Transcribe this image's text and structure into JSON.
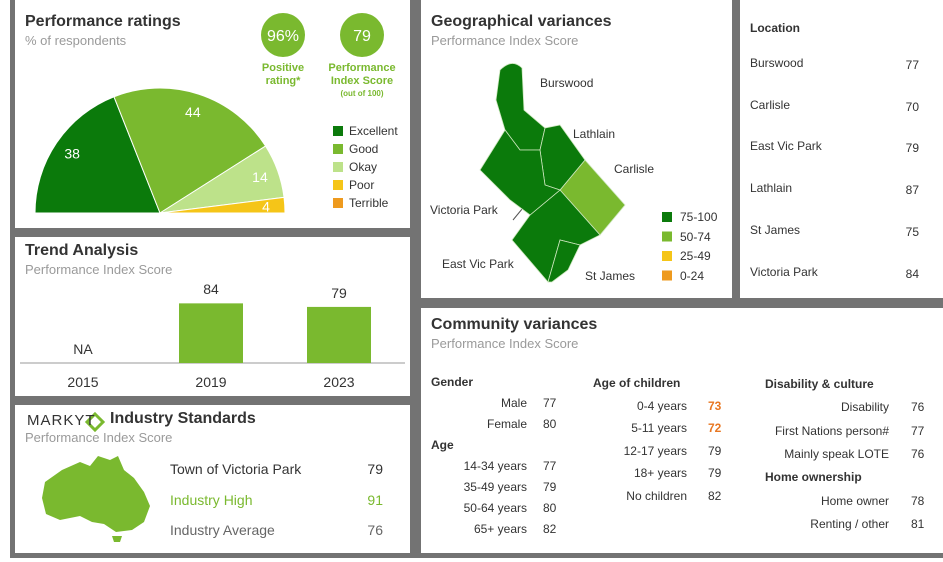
{
  "performance_ratings": {
    "title": "Performance ratings",
    "subtitle": "% of respondents",
    "badges": [
      {
        "value": "96%",
        "label": "Positive rating*"
      },
      {
        "value": "79",
        "label": "Performance Index Score",
        "note": "(out of 100)"
      }
    ],
    "chart_data": {
      "type": "pie",
      "half": true,
      "categories": [
        "Excellent",
        "Good",
        "Okay",
        "Poor",
        "Terrible"
      ],
      "values": [
        38,
        44,
        14,
        4,
        0
      ],
      "value_labels": [
        "38",
        "44",
        "14",
        "4",
        null
      ],
      "colors": [
        "#0b7a0b",
        "#7ab92f",
        "#bde28a",
        "#f5c518",
        "#ee9a1e"
      ]
    }
  },
  "trend_analysis": {
    "title": "Trend Analysis",
    "subtitle": "Performance Index Score",
    "chart_data": {
      "type": "bar",
      "categories": [
        "2015",
        "2019",
        "2023"
      ],
      "values": [
        null,
        84,
        79
      ],
      "value_labels": [
        "NA",
        "84",
        "79"
      ],
      "color": "#7ab92f",
      "ylim": [
        0,
        100
      ]
    }
  },
  "industry_standards": {
    "brand": "MARKYT",
    "title": "Industry Standards",
    "subtitle": "Performance Index Score",
    "rows": [
      {
        "label": "Town of Victoria Park",
        "value": 79,
        "color": "#333333"
      },
      {
        "label": "Industry High",
        "value": 91,
        "color": "#7ab92f"
      },
      {
        "label": "Industry Average",
        "value": 76,
        "color": "#666666"
      }
    ]
  },
  "geographical_variances": {
    "title": "Geographical variances",
    "subtitle": "Performance Index Score",
    "legend": [
      {
        "label": "75-100",
        "color": "#0b7a0b"
      },
      {
        "label": "50-74",
        "color": "#7ab92f"
      },
      {
        "label": "25-49",
        "color": "#f5c518"
      },
      {
        "label": "0-24",
        "color": "#ee9a1e"
      }
    ],
    "table": {
      "header": "Location",
      "rows": [
        {
          "name": "Burswood",
          "value": 77,
          "color": "#0b7a0b"
        },
        {
          "name": "Carlisle",
          "value": 70,
          "color": "#7ab92f"
        },
        {
          "name": "East Vic Park",
          "value": 79,
          "color": "#0b7a0b"
        },
        {
          "name": "Lathlain",
          "value": 87,
          "color": "#0b7a0b"
        },
        {
          "name": "St James",
          "value": 75,
          "color": "#0b7a0b"
        },
        {
          "name": "Victoria Park",
          "value": 84,
          "color": "#0b7a0b"
        }
      ]
    }
  },
  "community_variances": {
    "title": "Community variances",
    "subtitle": "Performance Index Score",
    "columns": [
      {
        "groups": [
          {
            "title": "Gender",
            "items": [
              {
                "label": "Male",
                "value": 77
              },
              {
                "label": "Female",
                "value": 80
              }
            ]
          },
          {
            "title": "Age",
            "items": [
              {
                "label": "14-34 years",
                "value": 77
              },
              {
                "label": "35-49 years",
                "value": 79
              },
              {
                "label": "50-64 years",
                "value": 80
              },
              {
                "label": "65+ years",
                "value": 82
              }
            ]
          }
        ]
      },
      {
        "groups": [
          {
            "title": "Age of children",
            "items": [
              {
                "label": "0-4 years",
                "value": 73,
                "color": "#e87722"
              },
              {
                "label": "5-11 years",
                "value": 72,
                "color": "#e87722"
              },
              {
                "label": "12-17 years",
                "value": 79
              },
              {
                "label": "18+ years",
                "value": 79
              },
              {
                "label": "No children",
                "value": 82
              }
            ]
          }
        ]
      },
      {
        "groups": [
          {
            "title": "Disability & culture",
            "items": [
              {
                "label": "Disability",
                "value": 76
              },
              {
                "label": "First Nations person#",
                "value": 77
              },
              {
                "label": "Mainly speak LOTE",
                "value": 76
              }
            ]
          },
          {
            "title": "Home ownership",
            "items": [
              {
                "label": "Home owner",
                "value": 78
              },
              {
                "label": "Renting / other",
                "value": 81
              }
            ]
          }
        ]
      }
    ]
  }
}
